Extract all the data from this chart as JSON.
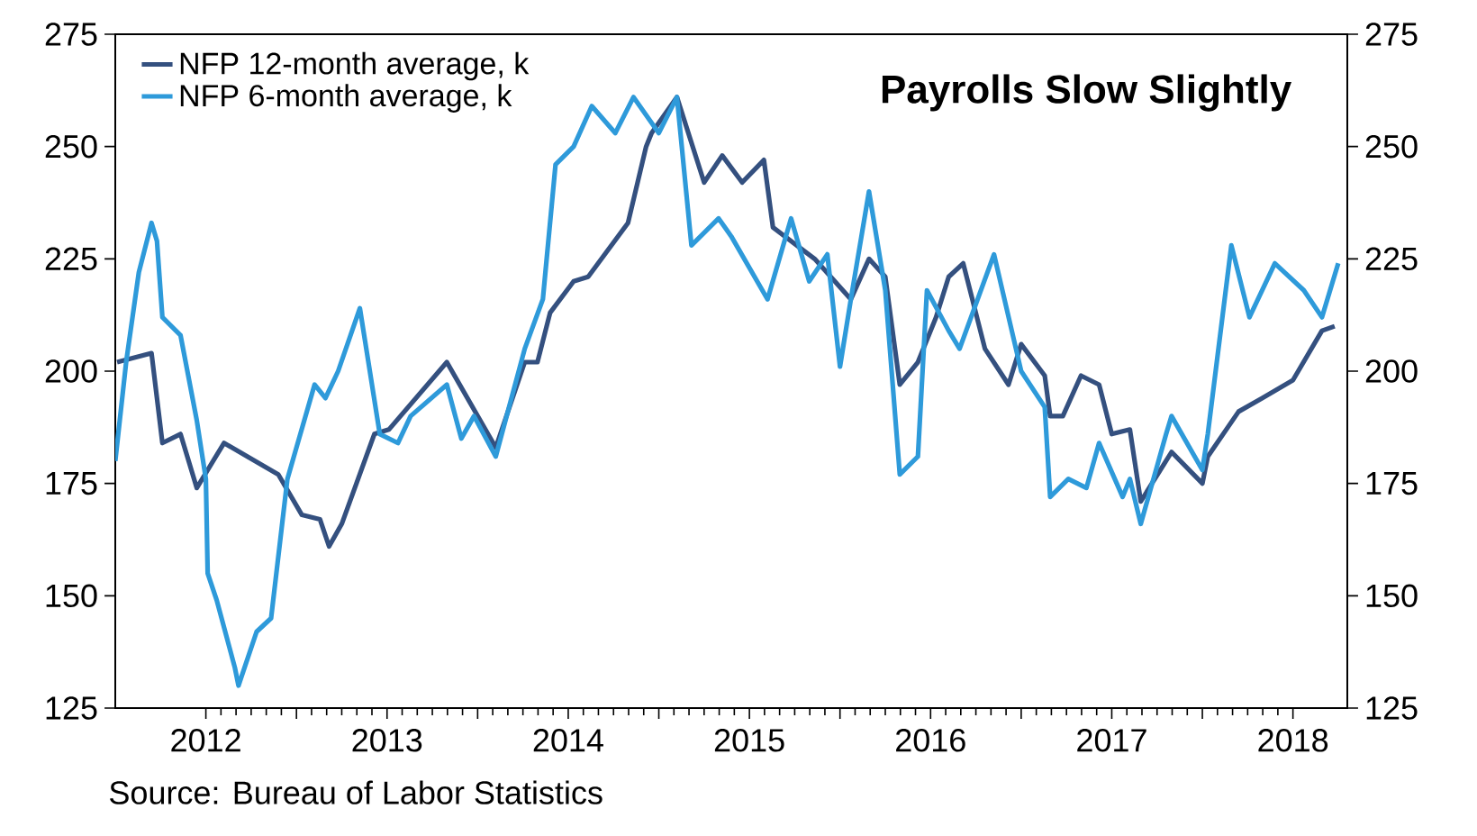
{
  "chart_data": {
    "type": "line",
    "title": "Payrolls Slow Slightly",
    "xlim": [
      2012,
      2018.8
    ],
    "xticks": [
      {
        "value": 2012.5,
        "label": "2012"
      },
      {
        "value": 2013,
        "label": null
      },
      {
        "value": 2013.5,
        "label": "2013"
      },
      {
        "value": 2014,
        "label": null
      },
      {
        "value": 2014.5,
        "label": "2014"
      },
      {
        "value": 2015,
        "label": null
      },
      {
        "value": 2015.5,
        "label": "2015"
      },
      {
        "value": 2016,
        "label": null
      },
      {
        "value": 2016.5,
        "label": "2016"
      },
      {
        "value": 2017,
        "label": null
      },
      {
        "value": 2017.5,
        "label": "2017"
      },
      {
        "value": 2018,
        "label": null
      },
      {
        "value": 2018.5,
        "label": "2018"
      }
    ],
    "ylim": [
      125,
      275
    ],
    "yticks": [
      125,
      150,
      175,
      200,
      225,
      250,
      275
    ],
    "y2lim": [
      125,
      275
    ],
    "y2ticks": [
      125,
      150,
      175,
      200,
      225,
      250,
      275
    ],
    "legend": "top left",
    "marker": "none",
    "line_style": "solid",
    "annotations": [
      "Source:  Bureau of Labor Statistics"
    ],
    "series": [
      {
        "name": "NFP 12-month average, k",
        "color": "#34507f",
        "x": [
          2012.01,
          2012.2,
          2012.26,
          2012.36,
          2012.45,
          2012.6,
          2012.9,
          2013.03,
          2013.13,
          2013.18,
          2013.25,
          2013.43,
          2013.51,
          2013.83,
          2014.1,
          2014.26,
          2014.33,
          2014.4,
          2014.53,
          2014.61,
          2014.83,
          2014.93,
          2014.96,
          2015.1,
          2015.25,
          2015.35,
          2015.46,
          2015.58,
          2015.63,
          2015.86,
          2016.06,
          2016.16,
          2016.25,
          2016.33,
          2016.43,
          2016.53,
          2016.6,
          2016.68,
          2016.8,
          2016.93,
          2017.0,
          2017.13,
          2017.16,
          2017.23,
          2017.33,
          2017.43,
          2017.5,
          2017.6,
          2017.66,
          2017.83,
          2018.0,
          2018.03,
          2018.2,
          2018.33,
          2018.5,
          2018.66,
          2018.73
        ],
        "values": [
          202,
          204,
          184,
          186,
          174,
          184,
          177,
          168,
          167,
          161,
          166,
          186,
          187,
          202,
          183,
          202,
          202,
          213,
          220,
          221,
          233,
          250,
          253,
          261,
          242,
          248,
          242,
          247,
          232,
          225,
          216,
          225,
          221,
          197,
          202,
          212,
          221,
          224,
          205,
          197,
          206,
          199,
          190,
          190,
          199,
          197,
          186,
          187,
          171,
          182,
          175,
          181,
          191,
          194,
          198,
          209,
          210
        ]
      },
      {
        "name": "NFP 6-month average, k",
        "color": "#2e9ada",
        "x": [
          2012.0,
          2012.06,
          2012.13,
          2012.2,
          2012.23,
          2012.26,
          2012.36,
          2012.45,
          2012.5,
          2012.51,
          2012.56,
          2012.66,
          2012.68,
          2012.78,
          2012.86,
          2012.95,
          2013.1,
          2013.16,
          2013.23,
          2013.35,
          2013.46,
          2013.56,
          2013.63,
          2013.83,
          2013.91,
          2013.98,
          2014.1,
          2014.26,
          2014.36,
          2014.43,
          2014.53,
          2014.63,
          2014.76,
          2014.86,
          2015.0,
          2015.1,
          2015.18,
          2015.33,
          2015.4,
          2015.6,
          2015.73,
          2015.83,
          2015.93,
          2016.0,
          2016.06,
          2016.16,
          2016.25,
          2016.33,
          2016.43,
          2016.48,
          2016.6,
          2016.66,
          2016.85,
          2017.0,
          2017.13,
          2017.16,
          2017.26,
          2017.36,
          2017.43,
          2017.56,
          2017.6,
          2017.66,
          2017.8,
          2017.83,
          2018.0,
          2018.03,
          2018.16,
          2018.26,
          2018.4,
          2018.56,
          2018.66,
          2018.75
        ],
        "values": [
          180,
          202,
          222,
          233,
          229,
          212,
          208,
          189,
          176,
          155,
          149,
          134,
          130,
          142,
          145,
          176,
          197,
          194,
          200,
          214,
          186,
          184,
          190,
          197,
          185,
          190,
          181,
          205,
          216,
          246,
          250,
          259,
          253,
          261,
          253,
          261,
          228,
          234,
          230,
          216,
          234,
          220,
          226,
          201,
          216,
          240,
          218,
          177,
          181,
          218,
          209,
          205,
          226,
          200,
          192,
          172,
          176,
          174,
          184,
          172,
          176,
          166,
          186,
          190,
          178,
          186,
          228,
          212,
          224,
          218,
          212,
          224
        ]
      }
    ]
  }
}
